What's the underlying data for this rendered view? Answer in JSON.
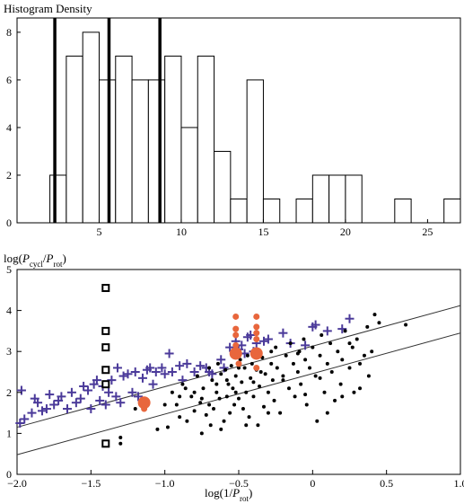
{
  "chart_data": [
    {
      "type": "bar",
      "title": "Histogram Density",
      "xlim": [
        0,
        27
      ],
      "ylim": [
        0,
        8.6
      ],
      "xticks": [
        5,
        10,
        15,
        20,
        25
      ],
      "yticks": [
        0,
        2,
        4,
        6,
        8
      ],
      "bin_width": 1,
      "bins": [
        {
          "x0": 2,
          "value": 2
        },
        {
          "x0": 3,
          "value": 7
        },
        {
          "x0": 4,
          "value": 8
        },
        {
          "x0": 5,
          "value": 6
        },
        {
          "x0": 6,
          "value": 7
        },
        {
          "x0": 7,
          "value": 6
        },
        {
          "x0": 8,
          "value": 6
        },
        {
          "x0": 9,
          "value": 7
        },
        {
          "x0": 10,
          "value": 4
        },
        {
          "x0": 11,
          "value": 7
        },
        {
          "x0": 12,
          "value": 3
        },
        {
          "x0": 13,
          "value": 1
        },
        {
          "x0": 14,
          "value": 6
        },
        {
          "x0": 15,
          "value": 1
        },
        {
          "x0": 17,
          "value": 1
        },
        {
          "x0": 18,
          "value": 2
        },
        {
          "x0": 19,
          "value": 2
        },
        {
          "x0": 20,
          "value": 2
        },
        {
          "x0": 23,
          "value": 1
        },
        {
          "x0": 26,
          "value": 1
        }
      ],
      "vertical_lines": [
        2.3,
        5.6,
        8.7
      ]
    },
    {
      "type": "scatter",
      "ylabel": "log(P_cycl/P_rot)",
      "xlabel": "log(1/P_rot)",
      "xlim": [
        -2.0,
        1.0
      ],
      "ylim": [
        0,
        5
      ],
      "xticks": [
        -2.0,
        -1.5,
        -1.0,
        -0.5,
        0,
        0.5,
        1.0
      ],
      "xtick_labels": [
        "−2.0",
        "−1.5",
        "−1.0",
        "−0.5",
        "0",
        "0.5",
        "1.0"
      ],
      "yticks": [
        0,
        1,
        2,
        3,
        4,
        5
      ],
      "lines": [
        {
          "x": [
            -2.0,
            1.0
          ],
          "y": [
            1.15,
            4.12
          ]
        },
        {
          "x": [
            -2.0,
            1.0
          ],
          "y": [
            0.48,
            3.45
          ]
        }
      ],
      "series": [
        {
          "marker": "plus",
          "color": "#4b3a9a",
          "points": [
            [
              -1.98,
              1.25
            ],
            [
              -1.97,
              2.05
            ],
            [
              -1.95,
              1.35
            ],
            [
              -1.9,
              1.5
            ],
            [
              -1.88,
              1.85
            ],
            [
              -1.86,
              1.75
            ],
            [
              -1.83,
              1.55
            ],
            [
              -1.8,
              1.6
            ],
            [
              -1.78,
              1.95
            ],
            [
              -1.75,
              1.7
            ],
            [
              -1.72,
              1.8
            ],
            [
              -1.7,
              1.9
            ],
            [
              -1.66,
              1.6
            ],
            [
              -1.63,
              2.0
            ],
            [
              -1.6,
              1.75
            ],
            [
              -1.57,
              1.85
            ],
            [
              -1.55,
              2.15
            ],
            [
              -1.52,
              2.05
            ],
            [
              -1.5,
              1.6
            ],
            [
              -1.48,
              2.2
            ],
            [
              -1.46,
              2.3
            ],
            [
              -1.44,
              1.8
            ],
            [
              -1.42,
              2.15
            ],
            [
              -1.4,
              1.7
            ],
            [
              -1.38,
              2.0
            ],
            [
              -1.36,
              2.3
            ],
            [
              -1.33,
              1.9
            ],
            [
              -1.32,
              2.6
            ],
            [
              -1.3,
              1.75
            ],
            [
              -1.28,
              2.4
            ],
            [
              -1.25,
              2.45
            ],
            [
              -1.22,
              2.0
            ],
            [
              -1.2,
              2.5
            ],
            [
              -1.18,
              1.9
            ],
            [
              -1.15,
              2.35
            ],
            [
              -1.12,
              2.55
            ],
            [
              -1.1,
              2.6
            ],
            [
              -1.08,
              2.2
            ],
            [
              -1.06,
              2.5
            ],
            [
              -1.02,
              2.6
            ],
            [
              -1.0,
              2.45
            ],
            [
              -0.97,
              2.95
            ],
            [
              -0.95,
              2.5
            ],
            [
              -0.9,
              2.65
            ],
            [
              -0.88,
              2.3
            ],
            [
              -0.85,
              2.7
            ],
            [
              -0.8,
              2.5
            ],
            [
              -0.76,
              2.65
            ],
            [
              -0.72,
              2.6
            ],
            [
              -0.7,
              2.5
            ],
            [
              -0.68,
              2.45
            ],
            [
              -0.62,
              2.8
            ],
            [
              -0.6,
              2.6
            ],
            [
              -0.56,
              3.1
            ],
            [
              -0.52,
              3.25
            ],
            [
              -0.5,
              3.05
            ],
            [
              -0.48,
              3.15
            ],
            [
              -0.46,
              2.95
            ],
            [
              -0.44,
              3.35
            ],
            [
              -0.42,
              3.4
            ],
            [
              -0.4,
              3.0
            ],
            [
              -0.38,
              3.2
            ],
            [
              -0.33,
              3.25
            ],
            [
              -0.3,
              3.3
            ],
            [
              -0.2,
              3.45
            ],
            [
              -0.15,
              3.2
            ],
            [
              -0.05,
              3.15
            ],
            [
              0.0,
              3.6
            ],
            [
              0.02,
              3.65
            ],
            [
              0.1,
              3.5
            ],
            [
              0.2,
              3.55
            ],
            [
              0.25,
              3.8
            ]
          ]
        },
        {
          "marker": "dot",
          "color": "#000000",
          "points": [
            [
              -1.3,
              0.75
            ],
            [
              -1.3,
              0.9
            ],
            [
              -1.2,
              1.6
            ],
            [
              -1.05,
              1.1
            ],
            [
              -0.98,
              1.15
            ],
            [
              -0.95,
              2.0
            ],
            [
              -0.92,
              1.7
            ],
            [
              -0.9,
              1.4
            ],
            [
              -0.88,
              2.2
            ],
            [
              -0.85,
              1.3
            ],
            [
              -0.82,
              1.9
            ],
            [
              -0.8,
              1.55
            ],
            [
              -0.78,
              2.4
            ],
            [
              -0.76,
              1.75
            ],
            [
              -0.75,
              1.0
            ],
            [
              -0.74,
              2.1
            ],
            [
              -0.72,
              1.45
            ],
            [
              -0.7,
              2.6
            ],
            [
              -0.69,
              1.2
            ],
            [
              -0.68,
              2.3
            ],
            [
              -0.67,
              1.6
            ],
            [
              -0.65,
              2.0
            ],
            [
              -0.64,
              2.7
            ],
            [
              -0.63,
              1.85
            ],
            [
              -0.62,
              2.45
            ],
            [
              -0.6,
              1.3
            ],
            [
              -0.59,
              2.55
            ],
            [
              -0.58,
              1.9
            ],
            [
              -0.57,
              2.2
            ],
            [
              -0.56,
              1.5
            ],
            [
              -0.55,
              2.65
            ],
            [
              -0.54,
              2.1
            ],
            [
              -0.53,
              1.7
            ],
            [
              -0.52,
              2.4
            ],
            [
              -0.5,
              1.85
            ],
            [
              -0.49,
              2.8
            ],
            [
              -0.48,
              2.25
            ],
            [
              -0.47,
              1.6
            ],
            [
              -0.46,
              2.6
            ],
            [
              -0.45,
              2.0
            ],
            [
              -0.44,
              2.9
            ],
            [
              -0.43,
              1.4
            ],
            [
              -0.42,
              2.35
            ],
            [
              -0.41,
              2.7
            ],
            [
              -0.4,
              1.9
            ],
            [
              -0.38,
              2.55
            ],
            [
              -0.37,
              1.2
            ],
            [
              -0.36,
              2.15
            ],
            [
              -0.34,
              2.85
            ],
            [
              -0.33,
              1.65
            ],
            [
              -0.32,
              2.45
            ],
            [
              -0.3,
              2.0
            ],
            [
              -0.28,
              3.0
            ],
            [
              -0.27,
              2.3
            ],
            [
              -0.26,
              1.8
            ],
            [
              -0.25,
              3.1
            ],
            [
              -0.24,
              2.6
            ],
            [
              -0.22,
              1.5
            ],
            [
              -0.2,
              2.4
            ],
            [
              -0.18,
              2.9
            ],
            [
              -0.16,
              2.1
            ],
            [
              -0.15,
              3.2
            ],
            [
              -0.13,
              2.7
            ],
            [
              -0.12,
              1.9
            ],
            [
              -0.1,
              2.5
            ],
            [
              -0.09,
              3.0
            ],
            [
              -0.08,
              2.2
            ],
            [
              -0.06,
              3.3
            ],
            [
              -0.05,
              2.8
            ],
            [
              -0.04,
              1.7
            ],
            [
              -0.02,
              2.6
            ],
            [
              0.0,
              3.1
            ],
            [
              0.02,
              2.4
            ],
            [
              0.03,
              1.3
            ],
            [
              0.05,
              2.9
            ],
            [
              0.06,
              3.4
            ],
            [
              0.08,
              2.0
            ],
            [
              0.1,
              2.7
            ],
            [
              0.12,
              3.2
            ],
            [
              0.13,
              2.5
            ],
            [
              0.15,
              1.8
            ],
            [
              0.17,
              3.0
            ],
            [
              0.19,
              2.2
            ],
            [
              0.2,
              2.8
            ],
            [
              0.22,
              3.5
            ],
            [
              0.25,
              2.6
            ],
            [
              0.27,
              3.1
            ],
            [
              0.28,
              2.0
            ],
            [
              0.3,
              3.3
            ],
            [
              0.32,
              2.7
            ],
            [
              0.35,
              2.9
            ],
            [
              0.37,
              3.6
            ],
            [
              0.38,
              2.4
            ],
            [
              0.4,
              3.0
            ],
            [
              0.42,
              3.9
            ],
            [
              0.45,
              3.7
            ],
            [
              0.63,
              3.65
            ],
            [
              -0.65,
              2.2
            ],
            [
              -0.75,
              1.85
            ],
            [
              -0.9,
              1.9
            ],
            [
              -0.58,
              2.3
            ],
            [
              -0.5,
              2.6
            ],
            [
              -0.35,
              2.5
            ],
            [
              -0.2,
              2.3
            ],
            [
              -0.1,
              2.95
            ],
            [
              0.05,
              2.35
            ],
            [
              -1.0,
              1.7
            ],
            [
              -0.8,
              2.0
            ],
            [
              -0.7,
              1.7
            ],
            [
              -0.62,
              1.1
            ],
            [
              -0.45,
              1.2
            ],
            [
              -0.3,
              1.5
            ],
            [
              0.1,
              1.5
            ],
            [
              0.2,
              1.9
            ],
            [
              0.32,
              2.1
            ],
            [
              -0.86,
              2.1
            ],
            [
              -0.52,
              2.0
            ],
            [
              -0.4,
              2.25
            ],
            [
              -0.28,
              2.7
            ],
            [
              -0.05,
              1.95
            ],
            [
              0.25,
              3.2
            ]
          ]
        },
        {
          "marker": "filled-circle-small",
          "color": "#e8663c",
          "points": [
            [
              -0.52,
              3.85
            ],
            [
              -0.52,
              3.55
            ],
            [
              -0.52,
              3.4
            ],
            [
              -0.52,
              3.15
            ],
            [
              -0.5,
              2.7
            ],
            [
              -0.38,
              3.85
            ],
            [
              -0.38,
              3.6
            ],
            [
              -0.38,
              3.45
            ],
            [
              -0.38,
              3.3
            ],
            [
              -0.38,
              2.6
            ],
            [
              -1.14,
              1.6
            ]
          ]
        },
        {
          "marker": "filled-circle-large",
          "color": "#e8663c",
          "points": [
            [
              -1.14,
              1.75
            ],
            [
              -0.52,
              2.95
            ],
            [
              -0.38,
              2.95
            ]
          ]
        },
        {
          "marker": "open-square",
          "color": "#000000",
          "points": [
            [
              -1.4,
              4.55
            ],
            [
              -1.4,
              3.5
            ],
            [
              -1.4,
              3.1
            ],
            [
              -1.4,
              2.55
            ],
            [
              -1.4,
              2.2
            ],
            [
              -1.4,
              0.75
            ]
          ]
        }
      ]
    }
  ]
}
